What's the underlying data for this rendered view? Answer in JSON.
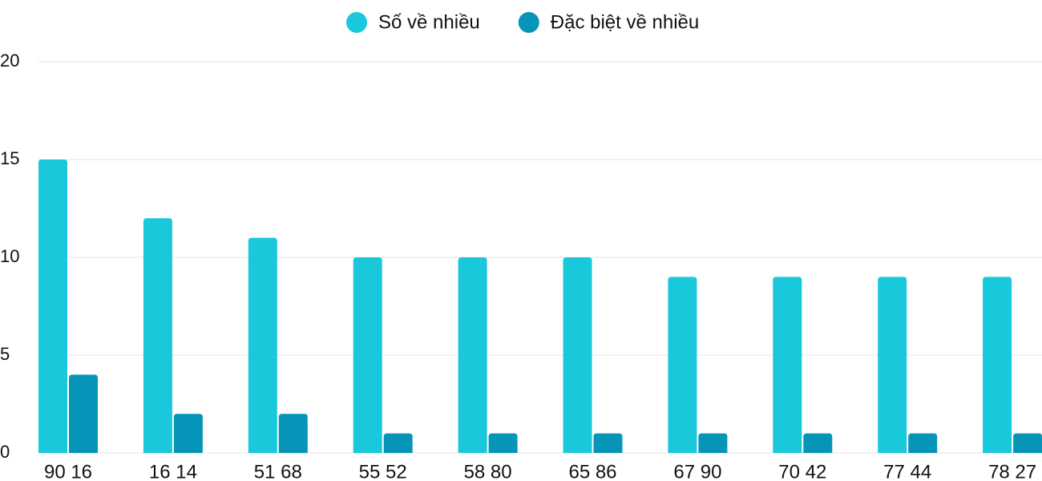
{
  "chart_data": {
    "type": "bar",
    "categories": [
      "90 16",
      "16 14",
      "51 68",
      "55 52",
      "58 80",
      "65 86",
      "67 90",
      "70 42",
      "77 44",
      "78 27"
    ],
    "series": [
      {
        "name": "Số về nhiều",
        "color": "#1ac8db",
        "values": [
          15,
          12,
          11,
          10,
          10,
          10,
          9,
          9,
          9,
          9
        ]
      },
      {
        "name": "Đặc biệt về nhiều",
        "color": "#0695b8",
        "values": [
          4,
          2,
          2,
          1,
          1,
          1,
          1,
          1,
          1,
          1
        ]
      }
    ],
    "ylim": [
      0,
      20
    ],
    "yticks": [
      0,
      5,
      10,
      15,
      20
    ],
    "grid": true,
    "legend": "top"
  }
}
